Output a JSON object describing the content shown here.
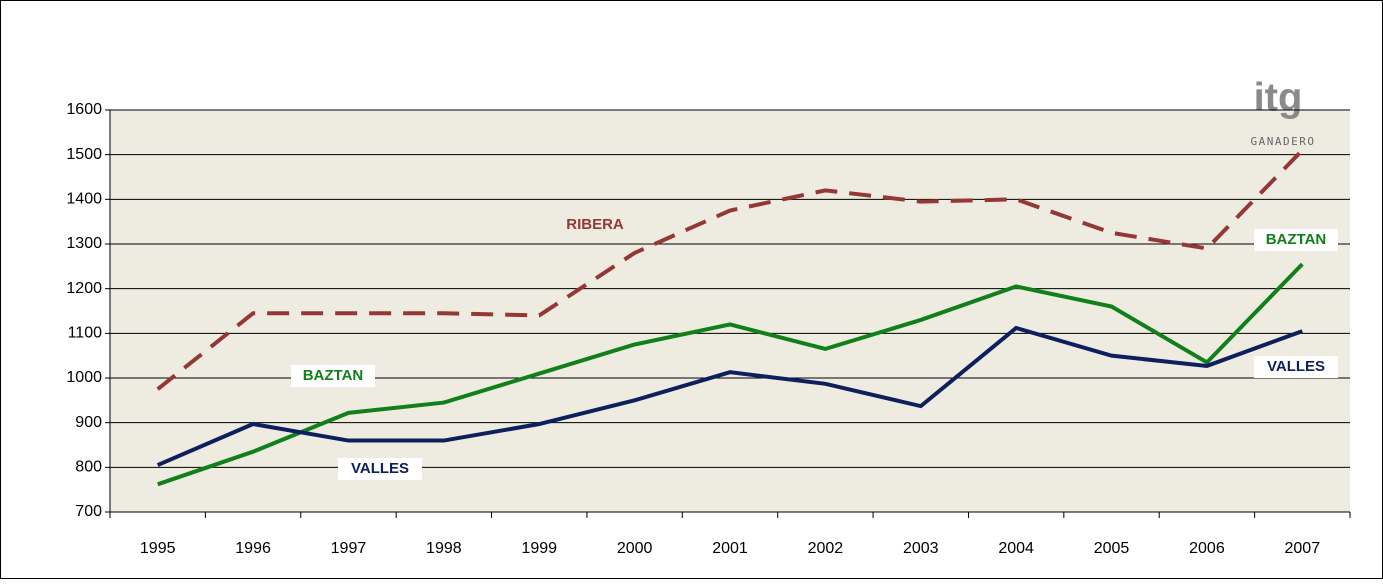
{
  "chart_data": {
    "type": "line",
    "categories": [
      "1995",
      "1996",
      "1997",
      "1998",
      "1999",
      "2000",
      "2001",
      "2002",
      "2003",
      "2004",
      "2005",
      "2006",
      "2007"
    ],
    "series": [
      {
        "name": "RIBERA",
        "color": "#953735",
        "dashed": true,
        "values": [
          975,
          1145,
          1145,
          1145,
          1140,
          1280,
          1375,
          1420,
          1395,
          1400,
          1325,
          1290,
          1510
        ]
      },
      {
        "name": "BAZTAN",
        "color": "#12801a",
        "dashed": false,
        "values": [
          762,
          835,
          922,
          945,
          1010,
          1075,
          1120,
          1065,
          1130,
          1205,
          1160,
          1035,
          1255
        ]
      },
      {
        "name": "VALLES",
        "color": "#0d1f5c",
        "dashed": false,
        "values": [
          805,
          897,
          860,
          860,
          897,
          950,
          1013,
          987,
          937,
          1112,
          1050,
          1027,
          1105
        ]
      }
    ],
    "ylim": [
      700,
      1600
    ],
    "yticks": [
      700,
      800,
      900,
      1000,
      1100,
      1200,
      1300,
      1400,
      1500,
      1600
    ],
    "grid": true
  },
  "logo": {
    "mark": "itg",
    "text": "GANADERO"
  }
}
